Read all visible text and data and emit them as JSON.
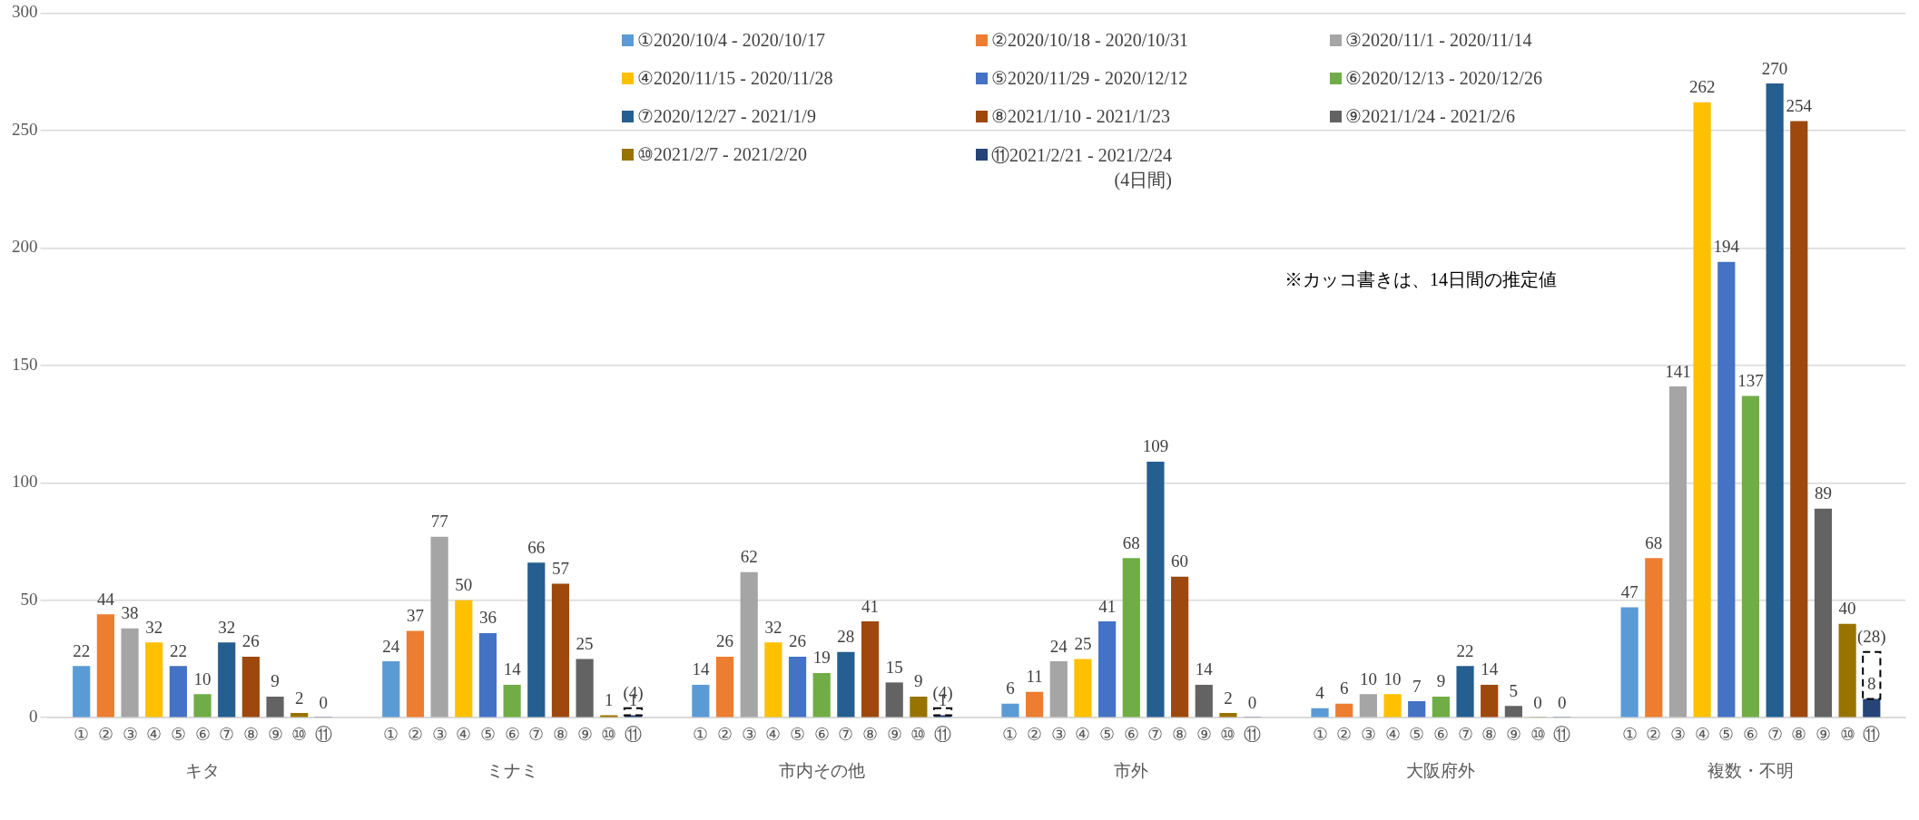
{
  "chart_data": {
    "type": "bar",
    "categories": [
      "キタ",
      "ミナミ",
      "市内その他",
      "市外",
      "大阪府外",
      "複数・不明"
    ],
    "series": [
      {
        "name": "①2020/10/4 - 2020/10/17",
        "color": "#5b9bd5",
        "values": [
          22,
          24,
          14,
          6,
          4,
          47
        ]
      },
      {
        "name": "②2020/10/18 - 2020/10/31",
        "color": "#ed7d31",
        "values": [
          44,
          37,
          26,
          11,
          6,
          68
        ]
      },
      {
        "name": "③2020/11/1 - 2020/11/14",
        "color": "#a5a5a5",
        "values": [
          38,
          77,
          62,
          24,
          10,
          141
        ]
      },
      {
        "name": "④2020/11/15 - 2020/11/28",
        "color": "#ffc000",
        "values": [
          32,
          50,
          32,
          25,
          10,
          262
        ]
      },
      {
        "name": "⑤2020/11/29 - 2020/12/12",
        "color": "#4472c4",
        "values": [
          22,
          36,
          26,
          41,
          7,
          194
        ]
      },
      {
        "name": "⑥2020/12/13 - 2020/12/26",
        "color": "#70ad47",
        "values": [
          10,
          14,
          19,
          68,
          9,
          137
        ]
      },
      {
        "name": "⑦2020/12/27 - 2021/1/9",
        "color": "#255e91",
        "values": [
          32,
          66,
          28,
          109,
          22,
          270
        ]
      },
      {
        "name": "⑧2021/1/10 - 2021/1/23",
        "color": "#9e480e",
        "values": [
          26,
          57,
          41,
          60,
          14,
          254
        ]
      },
      {
        "name": "⑨2021/1/24 - 2021/2/6",
        "color": "#636363",
        "values": [
          9,
          25,
          15,
          14,
          5,
          89
        ]
      },
      {
        "name": "⑩2021/2/7 - 2021/2/20",
        "color": "#997300",
        "values": [
          2,
          1,
          9,
          2,
          0,
          40
        ]
      },
      {
        "name": "⑪2021/2/21 - 2021/2/24\n(4日間)",
        "color": "#264478",
        "values": [
          0,
          1,
          1,
          0,
          0,
          8
        ]
      },
      {
        "color": "#000000",
        "line_style": "dashed",
        "base": [
          null,
          1,
          1,
          null,
          null,
          8
        ],
        "values": [
          null,
          3,
          3,
          null,
          null,
          20
        ],
        "value_labels": [
          null,
          "(4)",
          "(4)",
          null,
          null,
          "(28)"
        ]
      }
    ],
    "ylim": [
      0,
      300
    ],
    "yticks": [
      0,
      50,
      100,
      150,
      200,
      250,
      300
    ],
    "grid": "y",
    "legend": "top",
    "data_labels": true,
    "annotations": [
      "※カッコ書きは、14日間の推定値",
      "①",
      "②",
      "③",
      "④",
      "⑤",
      "⑥",
      "⑦",
      "⑧",
      "⑨",
      "⑩",
      "⑪",
      "①",
      "②",
      "③",
      "④",
      "⑤",
      "⑥",
      "⑦",
      "⑧",
      "⑨",
      "⑩",
      "⑪",
      "①",
      "②",
      "③",
      "④",
      "⑤",
      "⑥",
      "⑦",
      "⑧",
      "⑨",
      "⑩",
      "⑪",
      "①",
      "②",
      "③",
      "④",
      "⑤",
      "⑥",
      "⑦",
      "⑧",
      "⑨",
      "⑩",
      "⑪",
      "①",
      "②",
      "③",
      "④",
      "⑤",
      "⑥",
      "⑦",
      "⑧",
      "⑨",
      "⑩",
      "⑪",
      "①",
      "②",
      "③",
      "④",
      "⑤",
      "⑥",
      "⑦",
      "⑧",
      "⑨",
      "⑩",
      "⑪"
    ]
  }
}
